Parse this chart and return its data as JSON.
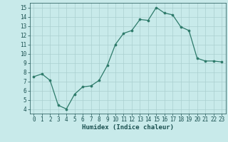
{
  "x": [
    0,
    1,
    2,
    3,
    4,
    5,
    6,
    7,
    8,
    9,
    10,
    11,
    12,
    13,
    14,
    15,
    16,
    17,
    18,
    19,
    20,
    21,
    22,
    23
  ],
  "y": [
    7.5,
    7.8,
    7.1,
    4.4,
    4.0,
    5.6,
    6.4,
    6.5,
    7.1,
    8.7,
    11.0,
    12.2,
    12.5,
    13.7,
    13.6,
    15.0,
    14.4,
    14.2,
    12.9,
    12.5,
    9.5,
    9.2,
    9.2,
    9.1
  ],
  "xlabel": "Humidex (Indice chaleur)",
  "line_color": "#2d7a6a",
  "marker_color": "#2d7a6a",
  "bg_color": "#c8eaea",
  "grid_color": "#aacfcf",
  "text_color": "#1a5050",
  "ylim_min": 3.5,
  "ylim_max": 15.5,
  "xlim_min": -0.5,
  "xlim_max": 23.5,
  "yticks": [
    4,
    5,
    6,
    7,
    8,
    9,
    10,
    11,
    12,
    13,
    14,
    15
  ],
  "xticks": [
    0,
    1,
    2,
    3,
    4,
    5,
    6,
    7,
    8,
    9,
    10,
    11,
    12,
    13,
    14,
    15,
    16,
    17,
    18,
    19,
    20,
    21,
    22,
    23
  ],
  "xtick_labels": [
    "0",
    "1",
    "2",
    "3",
    "4",
    "5",
    "6",
    "7",
    "8",
    "9",
    "10",
    "11",
    "12",
    "13",
    "14",
    "15",
    "16",
    "17",
    "18",
    "19",
    "20",
    "21",
    "22",
    "23"
  ],
  "ytick_labels": [
    "4",
    "5",
    "6",
    "7",
    "8",
    "9",
    "10",
    "11",
    "12",
    "13",
    "14",
    "15"
  ],
  "tick_fontsize": 5.5,
  "xlabel_fontsize": 6.5,
  "linewidth": 0.9,
  "markersize": 2.2
}
